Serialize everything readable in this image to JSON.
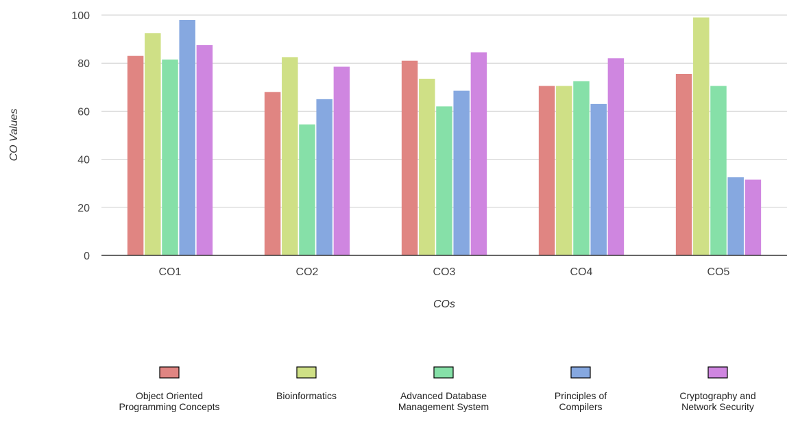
{
  "chart_data": {
    "type": "bar",
    "title": "",
    "xlabel": "COs",
    "ylabel": "CO Values",
    "ylim": [
      0,
      100
    ],
    "yticks": [
      0,
      20,
      40,
      60,
      80,
      100
    ],
    "grid": true,
    "legend_position": "bottom",
    "categories": [
      "CO1",
      "CO2",
      "CO3",
      "CO4",
      "CO5"
    ],
    "series": [
      {
        "name": "Object Oriented Programming Concepts",
        "color": "#e08582",
        "values": [
          83,
          68,
          81,
          70.5,
          75.5
        ]
      },
      {
        "name": "Bioinformatics",
        "color": "#cfe086",
        "values": [
          92.5,
          82.5,
          73.5,
          70.5,
          99
        ]
      },
      {
        "name": "Advanced Database Management System",
        "color": "#86e0a8",
        "values": [
          81.5,
          54.5,
          62,
          72.5,
          70.5
        ]
      },
      {
        "name": "Principles of Compilers",
        "color": "#86a8e0",
        "values": [
          98,
          65,
          68.5,
          63,
          32.5
        ]
      },
      {
        "name": "Cryptography and Network Security",
        "color": "#cf86e0",
        "values": [
          87.5,
          78.5,
          84.5,
          82,
          31.5
        ]
      }
    ]
  }
}
